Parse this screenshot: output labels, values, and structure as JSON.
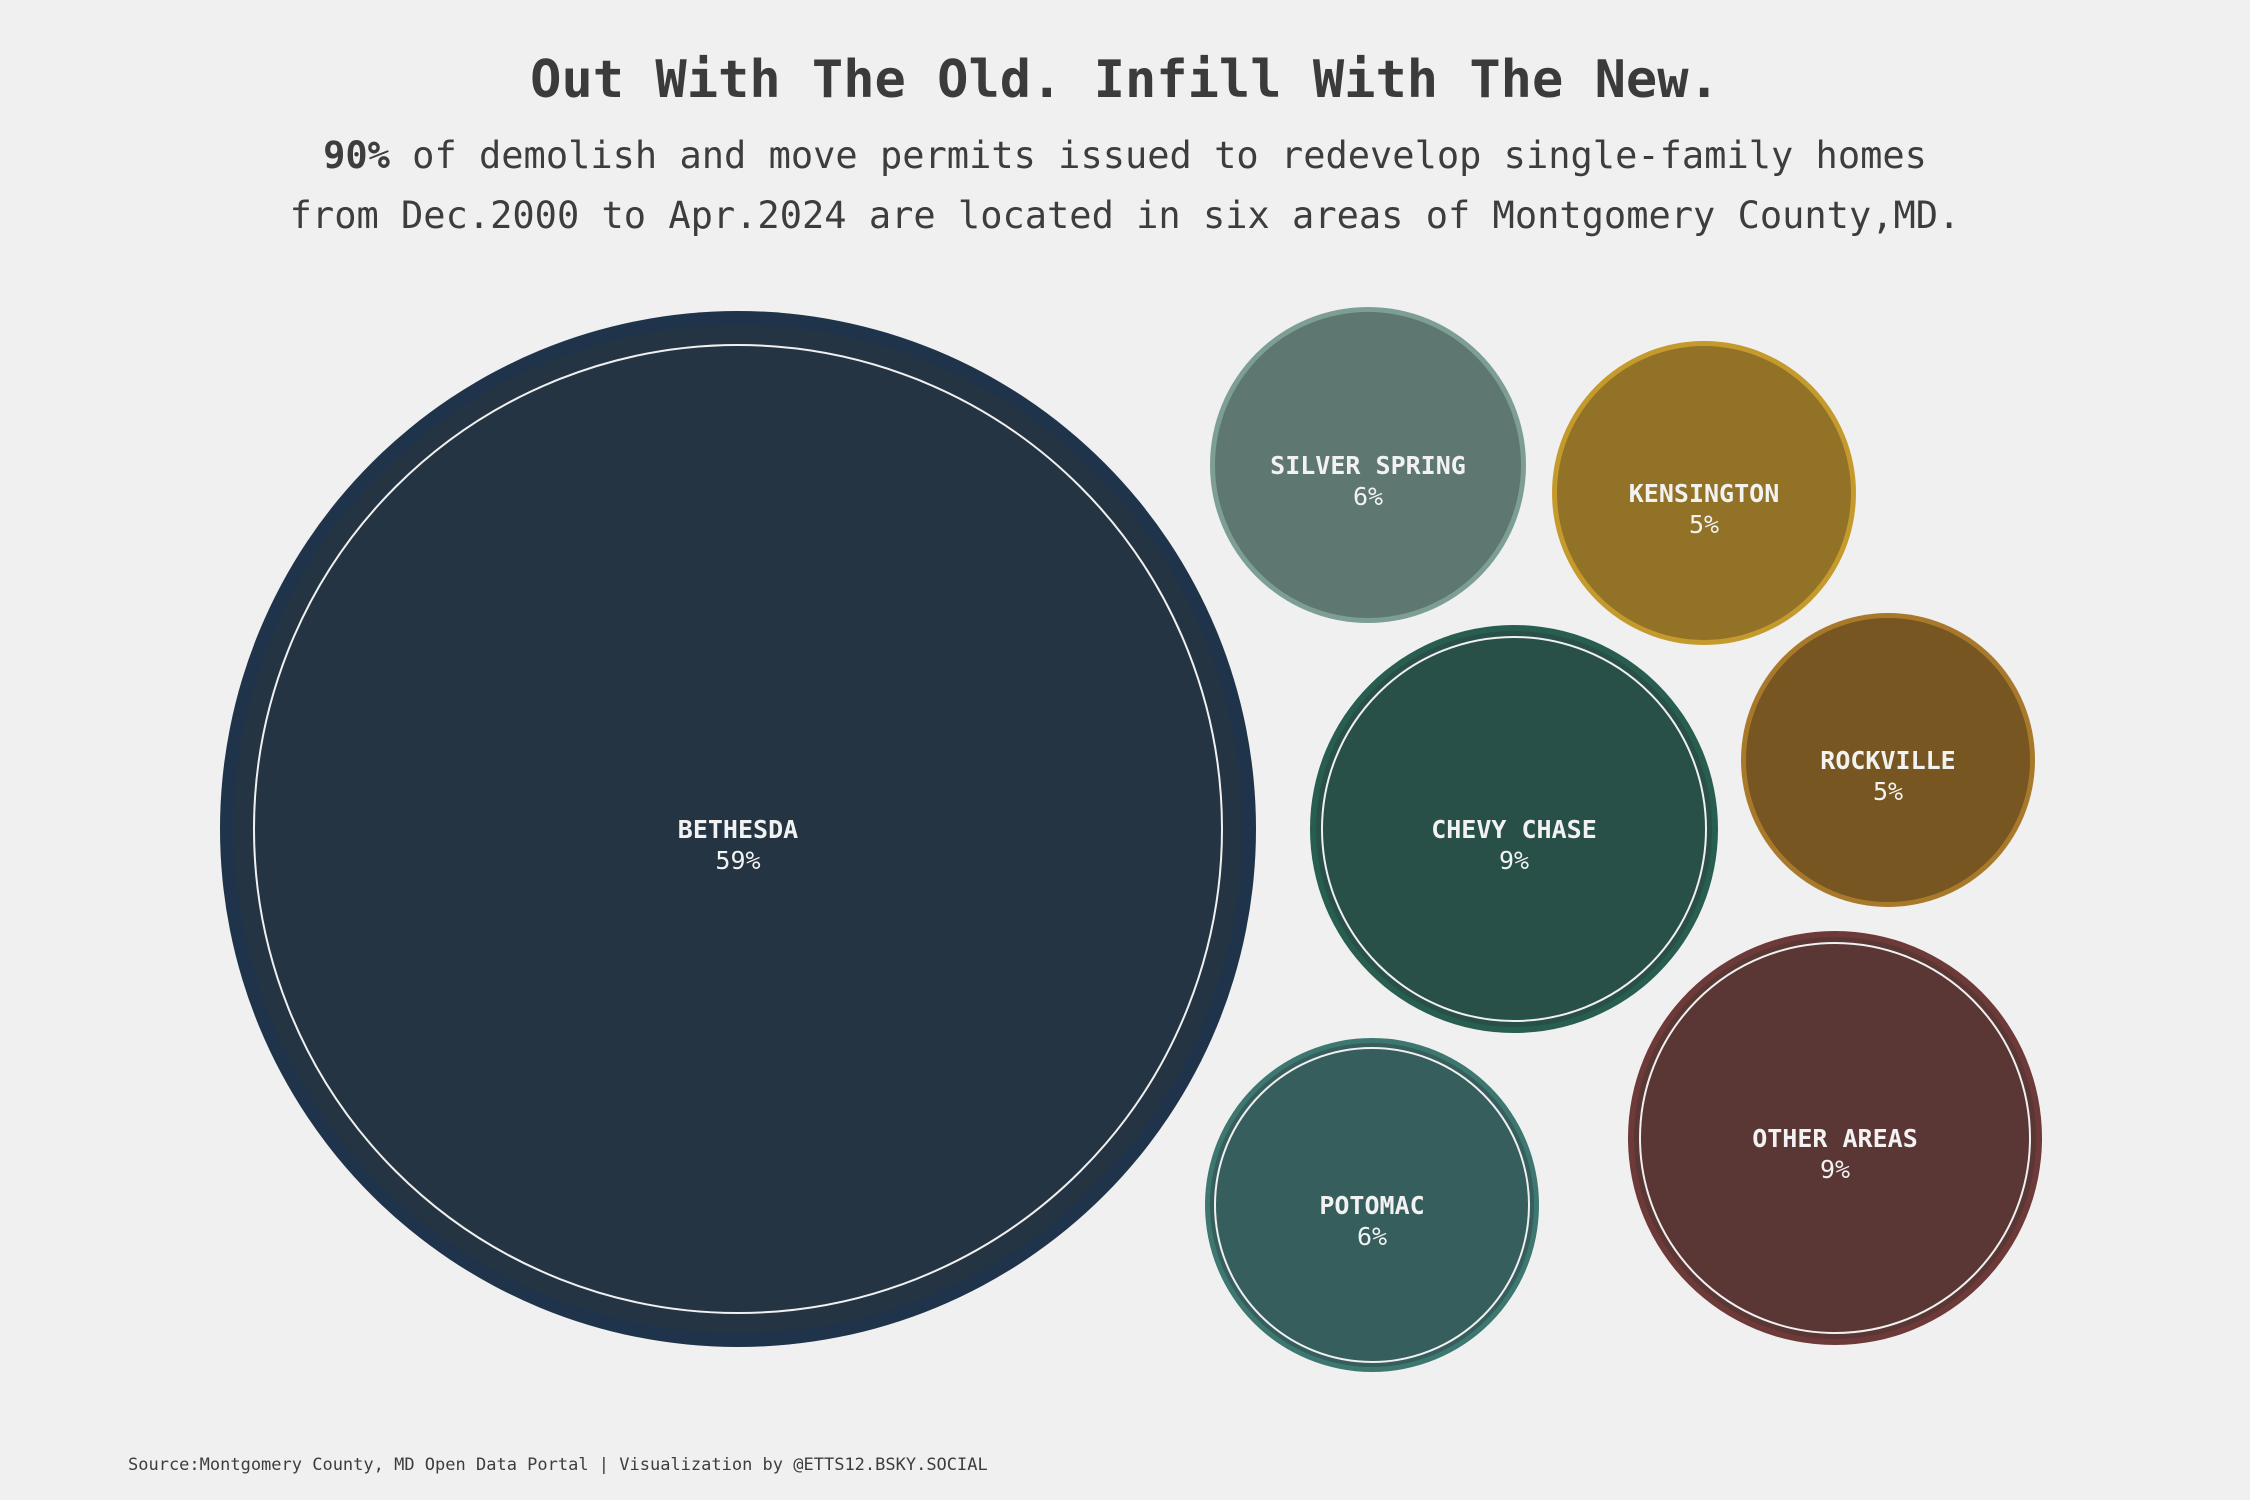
{
  "header": {
    "title": "Out With The Old. Infill With The New.",
    "subtitle_bold": "90%",
    "subtitle_line1_rest": " of demolish and move permits issued to redevelop single-family homes",
    "subtitle_line2": "from Dec.2000 to Apr.2024 are located in six areas of Montgomery County,MD."
  },
  "footer": {
    "source": "Source:Montgomery County, MD Open Data Portal | Visualization by @ETTS12.BSKY.SOCIAL"
  },
  "chart_data": {
    "type": "bubble",
    "unit": "%",
    "series": [
      {
        "name": "BETHESDA",
        "value": 59,
        "fill": "#243443",
        "ring": "#1f344b"
      },
      {
        "name": "SILVER SPRING",
        "value": 6,
        "fill": "#5e7770",
        "ring": "#7c9e94"
      },
      {
        "name": "KENSINGTON",
        "value": 5,
        "fill": "#917227",
        "ring": "#c59a2c"
      },
      {
        "name": "CHEVY CHASE",
        "value": 9,
        "fill": "#284f48",
        "ring": "#275e50"
      },
      {
        "name": "ROCKVILLE",
        "value": 5,
        "fill": "#775621",
        "ring": "#a8792a"
      },
      {
        "name": "POTOMAC",
        "value": 6,
        "fill": "#355e5c",
        "ring": "#3d7770"
      },
      {
        "name": "OTHER AREAS",
        "value": 9,
        "fill": "#5a3634",
        "ring": "#6d3a39"
      }
    ]
  }
}
